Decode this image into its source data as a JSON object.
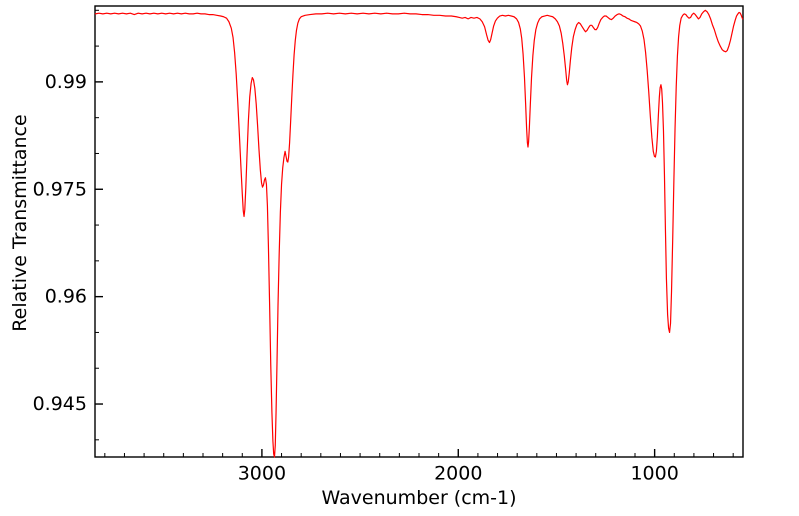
{
  "chart_data": {
    "type": "line",
    "title": "",
    "xlabel": "Wavenumber (cm-1)",
    "ylabel": "Relative Transmittance",
    "grid": false,
    "legend": "none",
    "background_color": "#ffffff",
    "frame_color": "#000000",
    "x_axis": {
      "reversed": true,
      "range": [
        3850,
        550
      ],
      "major_ticks": [
        {
          "value": 3000,
          "label": "3000"
        },
        {
          "value": 2000,
          "label": "2000"
        },
        {
          "value": 1000,
          "label": "1000"
        }
      ],
      "minor_tick_interval": 100
    },
    "y_axis": {
      "range": [
        0.9376,
        1.0006
      ],
      "major_ticks": [
        {
          "value": 0.99,
          "label": "0.99"
        },
        {
          "value": 0.975,
          "label": "0.975"
        },
        {
          "value": 0.96,
          "label": "0.96"
        },
        {
          "value": 0.945,
          "label": "0.945"
        }
      ],
      "minor_tick_interval": 0.005
    },
    "series": [
      {
        "name": "ir-spectrum",
        "color": "#ff0000",
        "points": [
          [
            3848,
            0.9995
          ],
          [
            3830,
            0.9996
          ],
          [
            3810,
            0.9995
          ],
          [
            3790,
            0.9996
          ],
          [
            3770,
            0.9995
          ],
          [
            3750,
            0.9996
          ],
          [
            3730,
            0.9995
          ],
          [
            3710,
            0.9996
          ],
          [
            3690,
            0.9995
          ],
          [
            3670,
            0.9996
          ],
          [
            3650,
            0.9994
          ],
          [
            3630,
            0.9996
          ],
          [
            3610,
            0.9995
          ],
          [
            3590,
            0.9996
          ],
          [
            3570,
            0.9995
          ],
          [
            3550,
            0.9996
          ],
          [
            3530,
            0.9995
          ],
          [
            3510,
            0.9996
          ],
          [
            3490,
            0.9995
          ],
          [
            3470,
            0.9996
          ],
          [
            3450,
            0.9995
          ],
          [
            3430,
            0.9996
          ],
          [
            3410,
            0.9995
          ],
          [
            3390,
            0.9996
          ],
          [
            3370,
            0.9995
          ],
          [
            3350,
            0.9995
          ],
          [
            3330,
            0.9996
          ],
          [
            3310,
            0.9995
          ],
          [
            3290,
            0.9995
          ],
          [
            3270,
            0.9994
          ],
          [
            3250,
            0.9994
          ],
          [
            3230,
            0.9993
          ],
          [
            3210,
            0.9992
          ],
          [
            3195,
            0.9991
          ],
          [
            3180,
            0.9989
          ],
          [
            3168,
            0.9984
          ],
          [
            3156,
            0.9975
          ],
          [
            3147,
            0.9962
          ],
          [
            3139,
            0.9941
          ],
          [
            3131,
            0.9911
          ],
          [
            3123,
            0.9872
          ],
          [
            3115,
            0.9828
          ],
          [
            3107,
            0.9782
          ],
          [
            3100,
            0.9744
          ],
          [
            3095,
            0.972
          ],
          [
            3091,
            0.9712
          ],
          [
            3087,
            0.9722
          ],
          [
            3082,
            0.9752
          ],
          [
            3076,
            0.9797
          ],
          [
            3069,
            0.9845
          ],
          [
            3062,
            0.9879
          ],
          [
            3055,
            0.9898
          ],
          [
            3049,
            0.9906
          ],
          [
            3043,
            0.9903
          ],
          [
            3036,
            0.9891
          ],
          [
            3029,
            0.9869
          ],
          [
            3022,
            0.9839
          ],
          [
            3015,
            0.9806
          ],
          [
            3008,
            0.9777
          ],
          [
            3002,
            0.9759
          ],
          [
            2997,
            0.9753
          ],
          [
            2992,
            0.9756
          ],
          [
            2987,
            0.9763
          ],
          [
            2982,
            0.9766
          ],
          [
            2977,
            0.9757
          ],
          [
            2972,
            0.9727
          ],
          [
            2967,
            0.9672
          ],
          [
            2961,
            0.9592
          ],
          [
            2955,
            0.9505
          ],
          [
            2949,
            0.9438
          ],
          [
            2944,
            0.9398
          ],
          [
            2940,
            0.938
          ],
          [
            2936,
            0.9376
          ],
          [
            2932,
            0.9392
          ],
          [
            2928,
            0.9438
          ],
          [
            2923,
            0.951
          ],
          [
            2918,
            0.9588
          ],
          [
            2912,
            0.966
          ],
          [
            2906,
            0.9718
          ],
          [
            2900,
            0.9757
          ],
          [
            2894,
            0.978
          ],
          [
            2888,
            0.9794
          ],
          [
            2882,
            0.9803
          ],
          [
            2877,
            0.9796
          ],
          [
            2872,
            0.9789
          ],
          [
            2868,
            0.9788
          ],
          [
            2864,
            0.9795
          ],
          [
            2859,
            0.9815
          ],
          [
            2854,
            0.9843
          ],
          [
            2848,
            0.9878
          ],
          [
            2842,
            0.991
          ],
          [
            2836,
            0.9938
          ],
          [
            2830,
            0.9958
          ],
          [
            2824,
            0.9972
          ],
          [
            2817,
            0.9982
          ],
          [
            2809,
            0.9988
          ],
          [
            2800,
            0.9991
          ],
          [
            2780,
            0.9993
          ],
          [
            2755,
            0.9994
          ],
          [
            2725,
            0.9995
          ],
          [
            2695,
            0.9995
          ],
          [
            2665,
            0.9996
          ],
          [
            2635,
            0.9995
          ],
          [
            2605,
            0.9996
          ],
          [
            2575,
            0.9995
          ],
          [
            2545,
            0.9996
          ],
          [
            2515,
            0.9995
          ],
          [
            2485,
            0.9996
          ],
          [
            2455,
            0.9995
          ],
          [
            2425,
            0.9996
          ],
          [
            2395,
            0.9995
          ],
          [
            2365,
            0.9996
          ],
          [
            2335,
            0.9995
          ],
          [
            2305,
            0.9995
          ],
          [
            2275,
            0.9996
          ],
          [
            2245,
            0.9995
          ],
          [
            2215,
            0.9995
          ],
          [
            2185,
            0.9994
          ],
          [
            2155,
            0.9994
          ],
          [
            2125,
            0.9993
          ],
          [
            2095,
            0.9993
          ],
          [
            2065,
            0.9992
          ],
          [
            2035,
            0.9992
          ],
          [
            2010,
            0.9991
          ],
          [
            1995,
            0.999
          ],
          [
            1980,
            0.9989
          ],
          [
            1965,
            0.999
          ],
          [
            1950,
            0.9988
          ],
          [
            1935,
            0.999
          ],
          [
            1920,
            0.9989
          ],
          [
            1905,
            0.999
          ],
          [
            1890,
            0.9988
          ],
          [
            1878,
            0.9984
          ],
          [
            1866,
            0.9977
          ],
          [
            1856,
            0.9966
          ],
          [
            1848,
            0.9958
          ],
          [
            1841,
            0.9955
          ],
          [
            1835,
            0.9959
          ],
          [
            1828,
            0.9968
          ],
          [
            1820,
            0.9978
          ],
          [
            1811,
            0.9985
          ],
          [
            1801,
            0.9989
          ],
          [
            1789,
            0.9992
          ],
          [
            1775,
            0.9993
          ],
          [
            1760,
            0.9992
          ],
          [
            1745,
            0.9993
          ],
          [
            1730,
            0.9992
          ],
          [
            1716,
            0.9991
          ],
          [
            1703,
            0.9988
          ],
          [
            1693,
            0.9983
          ],
          [
            1684,
            0.9974
          ],
          [
            1677,
            0.9961
          ],
          [
            1670,
            0.9939
          ],
          [
            1663,
            0.9907
          ],
          [
            1657,
            0.9869
          ],
          [
            1652,
            0.9835
          ],
          [
            1648,
            0.9815
          ],
          [
            1645,
            0.9809
          ],
          [
            1642,
            0.9816
          ],
          [
            1638,
            0.9836
          ],
          [
            1633,
            0.9869
          ],
          [
            1627,
            0.9906
          ],
          [
            1620,
            0.9937
          ],
          [
            1613,
            0.9958
          ],
          [
            1605,
            0.9973
          ],
          [
            1596,
            0.9982
          ],
          [
            1586,
            0.9988
          ],
          [
            1574,
            0.9991
          ],
          [
            1561,
            0.9992
          ],
          [
            1547,
            0.9993
          ],
          [
            1533,
            0.9992
          ],
          [
            1519,
            0.9991
          ],
          [
            1506,
            0.9988
          ],
          [
            1495,
            0.9984
          ],
          [
            1485,
            0.9978
          ],
          [
            1476,
            0.9968
          ],
          [
            1468,
            0.9954
          ],
          [
            1460,
            0.9936
          ],
          [
            1453,
            0.9917
          ],
          [
            1448,
            0.9902
          ],
          [
            1444,
            0.9896
          ],
          [
            1440,
            0.99
          ],
          [
            1435,
            0.9912
          ],
          [
            1429,
            0.993
          ],
          [
            1422,
            0.9948
          ],
          [
            1414,
            0.9963
          ],
          [
            1405,
            0.9973
          ],
          [
            1396,
            0.998
          ],
          [
            1387,
            0.9983
          ],
          [
            1378,
            0.9981
          ],
          [
            1369,
            0.9977
          ],
          [
            1360,
            0.9973
          ],
          [
            1352,
            0.997
          ],
          [
            1344,
            0.9972
          ],
          [
            1336,
            0.9976
          ],
          [
            1328,
            0.9979
          ],
          [
            1320,
            0.9979
          ],
          [
            1312,
            0.9976
          ],
          [
            1304,
            0.9973
          ],
          [
            1297,
            0.9973
          ],
          [
            1290,
            0.9976
          ],
          [
            1282,
            0.9982
          ],
          [
            1274,
            0.9987
          ],
          [
            1265,
            0.999
          ],
          [
            1256,
            0.9992
          ],
          [
            1247,
            0.9992
          ],
          [
            1238,
            0.999
          ],
          [
            1229,
            0.9988
          ],
          [
            1220,
            0.9987
          ],
          [
            1211,
            0.9989
          ],
          [
            1201,
            0.9992
          ],
          [
            1191,
            0.9994
          ],
          [
            1181,
            0.9995
          ],
          [
            1171,
            0.9994
          ],
          [
            1161,
            0.9992
          ],
          [
            1151,
            0.9991
          ],
          [
            1141,
            0.9989
          ],
          [
            1131,
            0.9988
          ],
          [
            1121,
            0.9986
          ],
          [
            1111,
            0.9985
          ],
          [
            1101,
            0.9984
          ],
          [
            1091,
            0.9983
          ],
          [
            1081,
            0.9981
          ],
          [
            1072,
            0.9978
          ],
          [
            1063,
            0.9971
          ],
          [
            1054,
            0.9959
          ],
          [
            1046,
            0.9941
          ],
          [
            1038,
            0.9916
          ],
          [
            1030,
            0.9886
          ],
          [
            1022,
            0.9852
          ],
          [
            1014,
            0.9822
          ],
          [
            1007,
            0.9803
          ],
          [
            1001,
            0.9796
          ],
          [
            996,
            0.9795
          ],
          [
            991,
            0.9803
          ],
          [
            986,
            0.9824
          ],
          [
            981,
            0.9853
          ],
          [
            976,
            0.9879
          ],
          [
            972,
            0.9892
          ],
          [
            968,
            0.9896
          ],
          [
            964,
            0.989
          ],
          [
            960,
            0.9871
          ],
          [
            955,
            0.9832
          ],
          [
            950,
            0.977
          ],
          [
            945,
            0.9693
          ],
          [
            940,
            0.9625
          ],
          [
            934,
            0.9575
          ],
          [
            929,
            0.9556
          ],
          [
            924,
            0.955
          ],
          [
            919,
            0.9563
          ],
          [
            914,
            0.9607
          ],
          [
            908,
            0.968
          ],
          [
            902,
            0.9762
          ],
          [
            896,
            0.9836
          ],
          [
            890,
            0.9894
          ],
          [
            884,
            0.9936
          ],
          [
            878,
            0.9963
          ],
          [
            872,
            0.9979
          ],
          [
            865,
            0.9989
          ],
          [
            857,
            0.9993
          ],
          [
            849,
            0.9995
          ],
          [
            841,
            0.9994
          ],
          [
            833,
            0.9991
          ],
          [
            825,
            0.9989
          ],
          [
            817,
            0.999
          ],
          [
            809,
            0.9994
          ],
          [
            801,
            0.9996
          ],
          [
            793,
            0.9994
          ],
          [
            785,
            0.9991
          ],
          [
            777,
            0.9988
          ],
          [
            769,
            0.999
          ],
          [
            760,
            0.9995
          ],
          [
            751,
            0.9998
          ],
          [
            742,
            1.0
          ],
          [
            733,
            0.9998
          ],
          [
            724,
            0.9994
          ],
          [
            715,
            0.9988
          ],
          [
            706,
            0.998
          ],
          [
            696,
            0.9973
          ],
          [
            686,
            0.9964
          ],
          [
            676,
            0.9956
          ],
          [
            666,
            0.995
          ],
          [
            656,
            0.9945
          ],
          [
            647,
            0.9943
          ],
          [
            638,
            0.9942
          ],
          [
            630,
            0.9944
          ],
          [
            622,
            0.995
          ],
          [
            614,
            0.9958
          ],
          [
            606,
            0.9968
          ],
          [
            598,
            0.9978
          ],
          [
            590,
            0.9986
          ],
          [
            583,
            0.9992
          ],
          [
            576,
            0.9995
          ],
          [
            570,
            0.9997
          ],
          [
            564,
            0.9996
          ],
          [
            559,
            0.9993
          ],
          [
            555,
            0.999
          ],
          [
            552,
            0.9988
          ]
        ]
      }
    ]
  }
}
